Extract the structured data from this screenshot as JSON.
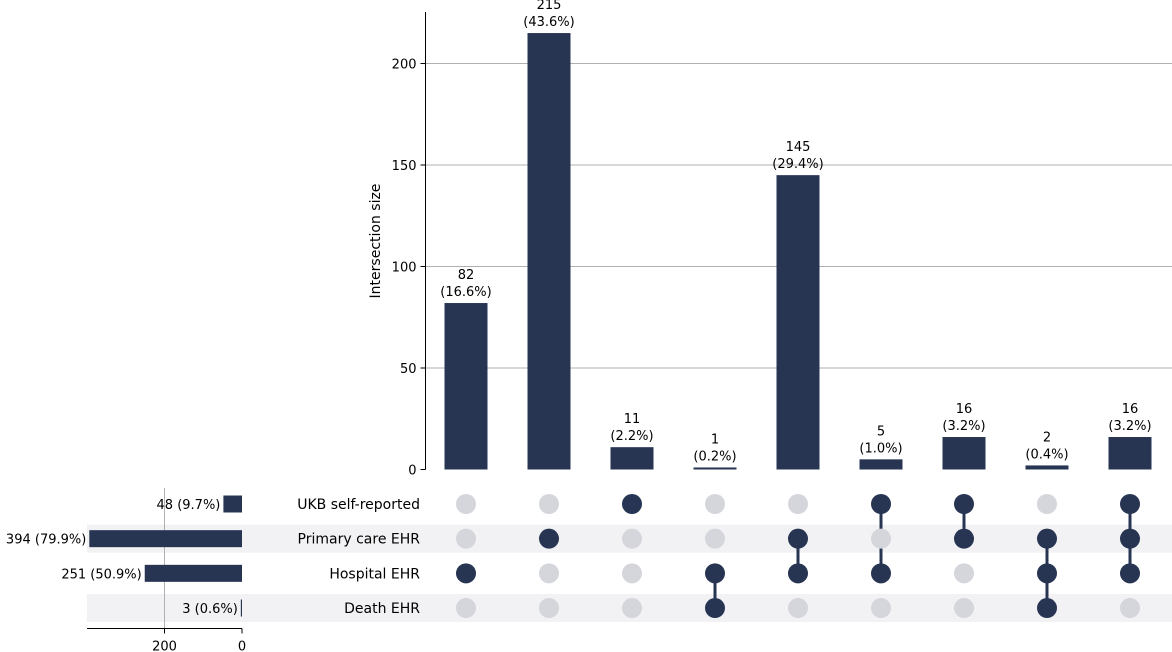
{
  "chart_data": {
    "type": "upset",
    "ylabel": "Intersection size",
    "ylim": [
      0,
      225
    ],
    "yticks": [
      0,
      50,
      100,
      150,
      200
    ],
    "grid": true,
    "sets": [
      {
        "name": "UKB self-reported",
        "size": 48,
        "label": "48 (9.7%)"
      },
      {
        "name": "Primary care EHR",
        "size": 394,
        "label": "394 (79.9%)"
      },
      {
        "name": "Hospital EHR",
        "size": 251,
        "label": "251 (50.9%)"
      },
      {
        "name": "Death EHR",
        "size": 3,
        "label": "3 (0.6%)"
      }
    ],
    "set_size_ticks": [
      200,
      0
    ],
    "set_size_max": 400,
    "intersections": [
      {
        "members": [
          2
        ],
        "value": 82,
        "count_label": "82",
        "pct_label": "(16.6%)"
      },
      {
        "members": [
          1
        ],
        "value": 215,
        "count_label": "215",
        "pct_label": "(43.6%)"
      },
      {
        "members": [
          0
        ],
        "value": 11,
        "count_label": "11",
        "pct_label": "(2.2%)"
      },
      {
        "members": [
          2,
          3
        ],
        "value": 1,
        "count_label": "1",
        "pct_label": "(0.2%)"
      },
      {
        "members": [
          1,
          2
        ],
        "value": 145,
        "count_label": "145",
        "pct_label": "(29.4%)"
      },
      {
        "members": [
          0,
          2
        ],
        "value": 5,
        "count_label": "5",
        "pct_label": "(1.0%)"
      },
      {
        "members": [
          0,
          1
        ],
        "value": 16,
        "count_label": "16",
        "pct_label": "(3.2%)"
      },
      {
        "members": [
          1,
          2,
          3
        ],
        "value": 2,
        "count_label": "2",
        "pct_label": "(0.4%)"
      },
      {
        "members": [
          0,
          1,
          2
        ],
        "value": 16,
        "count_label": "16",
        "pct_label": "(3.2%)"
      }
    ],
    "colors": {
      "bar": "#273553",
      "dot_active": "#273553",
      "dot_inactive": "#d4d6db",
      "stripe": "#f2f2f4",
      "grid": "#b0b0b0",
      "axis": "#000000"
    }
  }
}
